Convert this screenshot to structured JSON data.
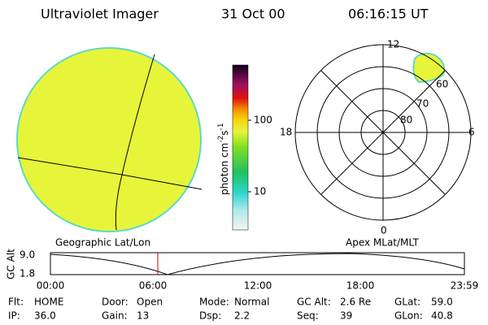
{
  "header": {
    "instrument": "Ultraviolet Imager",
    "date": "31 Oct 00",
    "time": "06:16:15 UT"
  },
  "colorbar": {
    "label": "photon cm",
    "exp1": "-2",
    "mid": "s",
    "exp2": "-1",
    "ticks": [
      "100",
      "10"
    ]
  },
  "polar": {
    "mlt": [
      "12",
      "18",
      "6",
      "0"
    ],
    "mlat": [
      "60",
      "70",
      "80"
    ]
  },
  "panel_titles": [
    "Geographic Lat/Lon",
    "Apex MLat/MLT"
  ],
  "altitude": {
    "ylabel": "GC Alt",
    "yticks": [
      "9.0",
      "1.8"
    ],
    "xticks": [
      "00:00",
      "06:00",
      "12:00",
      "18:00",
      "23:59"
    ]
  },
  "status": [
    [
      {
        "label": "Flt:",
        "value": "HOME"
      },
      {
        "label": "Door:",
        "value": "Open"
      },
      {
        "label": "Mode:",
        "value": "Normal"
      },
      {
        "label": "GC Alt:",
        "value": "2.6 Re"
      },
      {
        "label": "GLat:",
        "value": "59.0"
      }
    ],
    [
      {
        "label": "IP:",
        "value": "36.0"
      },
      {
        "label": "Gain:",
        "value": "13"
      },
      {
        "label": "Dsp:",
        "value": "2.2"
      },
      {
        "label": "Seq:",
        "value": "39"
      },
      {
        "label": "GLon:",
        "value": "40.8"
      }
    ]
  ]
}
